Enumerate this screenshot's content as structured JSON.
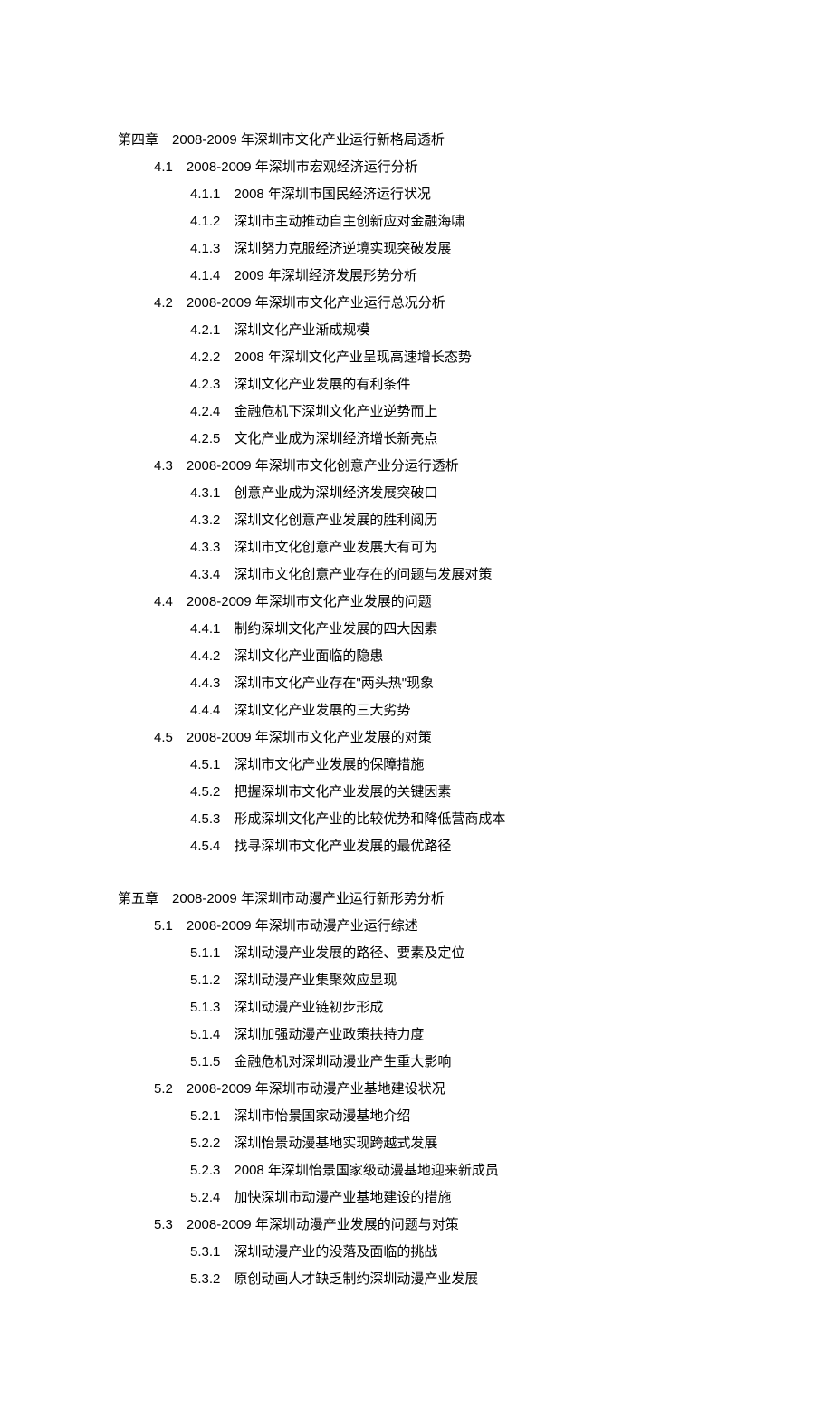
{
  "chapters": [
    {
      "num": "第四章",
      "title": "2008-2009 年深圳市文化产业运行新格局透析",
      "sections": [
        {
          "num": "4.1",
          "title": "2008-2009 年深圳市宏观经济运行分析",
          "items": [
            {
              "num": "4.1.1",
              "text": "2008 年深圳市国民经济运行状况"
            },
            {
              "num": "4.1.2",
              "text": "深圳市主动推动自主创新应对金融海啸"
            },
            {
              "num": "4.1.3",
              "text": "深圳努力克服经济逆境实现突破发展"
            },
            {
              "num": "4.1.4",
              "text": "2009 年深圳经济发展形势分析"
            }
          ]
        },
        {
          "num": "4.2",
          "title": "2008-2009 年深圳市文化产业运行总况分析",
          "items": [
            {
              "num": "4.2.1",
              "text": "深圳文化产业渐成规模"
            },
            {
              "num": "4.2.2",
              "text": "2008 年深圳文化产业呈现高速增长态势"
            },
            {
              "num": "4.2.3",
              "text": "深圳文化产业发展的有利条件"
            },
            {
              "num": "4.2.4",
              "text": "金融危机下深圳文化产业逆势而上"
            },
            {
              "num": "4.2.5",
              "text": "文化产业成为深圳经济增长新亮点"
            }
          ]
        },
        {
          "num": "4.3",
          "title": "2008-2009 年深圳市文化创意产业分运行透析",
          "items": [
            {
              "num": "4.3.1",
              "text": "创意产业成为深圳经济发展突破口"
            },
            {
              "num": "4.3.2",
              "text": "深圳文化创意产业发展的胜利阅历"
            },
            {
              "num": "4.3.3",
              "text": "深圳市文化创意产业发展大有可为"
            },
            {
              "num": "4.3.4",
              "text": "深圳市文化创意产业存在的问题与发展对策"
            }
          ]
        },
        {
          "num": "4.4",
          "title": "2008-2009 年深圳市文化产业发展的问题",
          "items": [
            {
              "num": "4.4.1",
              "text": "制约深圳文化产业发展的四大因素"
            },
            {
              "num": "4.4.2",
              "text": "深圳文化产业面临的隐患"
            },
            {
              "num": "4.4.3",
              "text": "深圳市文化产业存在\"两头热\"现象"
            },
            {
              "num": "4.4.4",
              "text": "深圳文化产业发展的三大劣势"
            }
          ]
        },
        {
          "num": "4.5",
          "title": "2008-2009 年深圳市文化产业发展的对策",
          "items": [
            {
              "num": "4.5.1",
              "text": "深圳市文化产业发展的保障措施"
            },
            {
              "num": "4.5.2",
              "text": "把握深圳市文化产业发展的关键因素"
            },
            {
              "num": "4.5.3",
              "text": "形成深圳文化产业的比较优势和降低营商成本"
            },
            {
              "num": "4.5.4",
              "text": "找寻深圳市文化产业发展的最优路径"
            }
          ]
        }
      ]
    },
    {
      "num": "第五章",
      "title": "2008-2009 年深圳市动漫产业运行新形势分析",
      "sections": [
        {
          "num": "5.1",
          "title": "2008-2009 年深圳市动漫产业运行综述",
          "items": [
            {
              "num": "5.1.1",
              "text": "深圳动漫产业发展的路径、要素及定位"
            },
            {
              "num": "5.1.2",
              "text": "深圳动漫产业集聚效应显现"
            },
            {
              "num": "5.1.3",
              "text": "深圳动漫产业链初步形成"
            },
            {
              "num": "5.1.4",
              "text": "深圳加强动漫产业政策扶持力度"
            },
            {
              "num": "5.1.5",
              "text": "金融危机对深圳动漫业产生重大影响"
            }
          ]
        },
        {
          "num": "5.2",
          "title": "2008-2009 年深圳市动漫产业基地建设状况",
          "items": [
            {
              "num": "5.2.1",
              "text": "深圳市怡景国家动漫基地介绍"
            },
            {
              "num": "5.2.2",
              "text": "深圳怡景动漫基地实现跨越式发展"
            },
            {
              "num": "5.2.3",
              "text": "2008 年深圳怡景国家级动漫基地迎来新成员"
            },
            {
              "num": "5.2.4",
              "text": "加快深圳市动漫产业基地建设的措施"
            }
          ]
        },
        {
          "num": "5.3",
          "title": "2008-2009 年深圳动漫产业发展的问题与对策",
          "items": [
            {
              "num": "5.3.1",
              "text": "深圳动漫产业的没落及面临的挑战"
            },
            {
              "num": "5.3.2",
              "text": "原创动画人才缺乏制约深圳动漫产业发展"
            }
          ]
        }
      ]
    }
  ]
}
